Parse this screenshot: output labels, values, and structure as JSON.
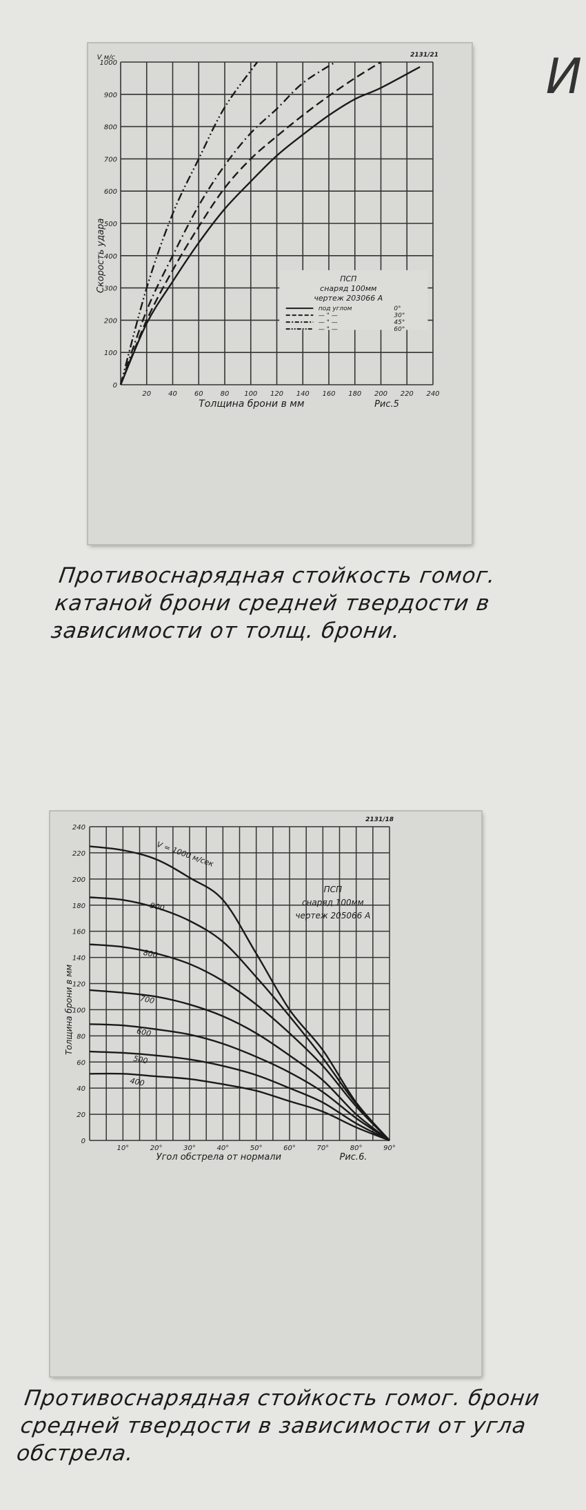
{
  "corner_mark": "И",
  "chart_data": [
    {
      "type": "line",
      "figure_label": "Рис.5",
      "stamp": "2131/21",
      "xlabel": "Толщина брони в мм",
      "ylabel": "Скорость удара",
      "yunit": "V м/с",
      "xlim": [
        0,
        240
      ],
      "ylim": [
        0,
        1000
      ],
      "xticks": [
        20,
        40,
        60,
        80,
        100,
        120,
        140,
        160,
        180,
        200,
        220,
        240
      ],
      "yticks": [
        0,
        100,
        200,
        300,
        400,
        500,
        600,
        700,
        800,
        900,
        1000
      ],
      "grid": true,
      "legend": {
        "placement": "center-right",
        "title": [
          "ПСП",
          "снаряд 100мм",
          "чертеж 203066 А"
        ],
        "prefix": "под углом"
      },
      "series": [
        {
          "name": "0°",
          "style": "solid",
          "x": [
            0,
            20,
            40,
            60,
            80,
            100,
            120,
            140,
            160,
            180,
            200,
            230
          ],
          "y": [
            0,
            190,
            320,
            440,
            545,
            630,
            710,
            775,
            835,
            885,
            920,
            985
          ]
        },
        {
          "name": "30°",
          "style": "dashed",
          "x": [
            0,
            20,
            40,
            60,
            80,
            100,
            120,
            140,
            160,
            180,
            200
          ],
          "y": [
            0,
            200,
            355,
            490,
            610,
            700,
            770,
            835,
            895,
            950,
            1000
          ]
        },
        {
          "name": "45°",
          "style": "dash-dot",
          "x": [
            0,
            20,
            40,
            60,
            80,
            100,
            120,
            140,
            165
          ],
          "y": [
            0,
            230,
            400,
            555,
            680,
            780,
            855,
            935,
            1000
          ]
        },
        {
          "name": "60°",
          "style": "dash-dot-dot",
          "x": [
            0,
            20,
            40,
            60,
            80,
            105
          ],
          "y": [
            0,
            300,
            530,
            700,
            860,
            1000
          ]
        }
      ]
    },
    {
      "type": "line",
      "figure_label": "Рис.6.",
      "stamp": "2131/18",
      "xlabel": "Угол обстрела от нормали",
      "ylabel": "Толщина брони в мм",
      "xlim": [
        0,
        90
      ],
      "ylim": [
        0,
        240
      ],
      "xticks": [
        "10°",
        "20°",
        "30°",
        "40°",
        "50°",
        "60°",
        "70°",
        "80°",
        "90°"
      ],
      "yticks": [
        0,
        20,
        40,
        60,
        80,
        100,
        120,
        140,
        160,
        180,
        200,
        220,
        240
      ],
      "grid": true,
      "legend": {
        "placement": "top-right",
        "title": [
          "ПСП",
          "снаряд 100мм",
          "чертеж 205066 А"
        ]
      },
      "x": [
        0,
        10,
        20,
        30,
        40,
        50,
        60,
        70,
        80,
        90
      ],
      "series": [
        {
          "name": "V = 1000 м/сек",
          "values": [
            225,
            222,
            215,
            201,
            184,
            143,
            100,
            69,
            29,
            0
          ]
        },
        {
          "name": "900",
          "values": [
            186,
            184,
            178,
            168,
            152,
            125,
            95,
            63,
            28,
            0
          ]
        },
        {
          "name": "800",
          "values": [
            150,
            148,
            143,
            135,
            122,
            104,
            82,
            57,
            26,
            0
          ]
        },
        {
          "name": "700",
          "values": [
            115,
            113,
            110,
            104,
            95,
            82,
            65,
            46,
            20,
            0
          ]
        },
        {
          "name": "600",
          "values": [
            89,
            88,
            85,
            81,
            74,
            64,
            52,
            37,
            17,
            0
          ]
        },
        {
          "name": "500",
          "values": [
            68,
            67,
            65,
            62,
            57,
            50,
            40,
            29,
            13,
            0
          ]
        },
        {
          "name": "400",
          "values": [
            51,
            51,
            49,
            47,
            43,
            38,
            30,
            22,
            10,
            0
          ]
        }
      ]
    }
  ],
  "captions": [
    "Противоснарядная стойкость гомог. катаной брони средней твердости в зависимости от толщ. брони.",
    "Противоснарядная стойкость гомог. брони средней твердости в зависимости от угла обстрела."
  ]
}
